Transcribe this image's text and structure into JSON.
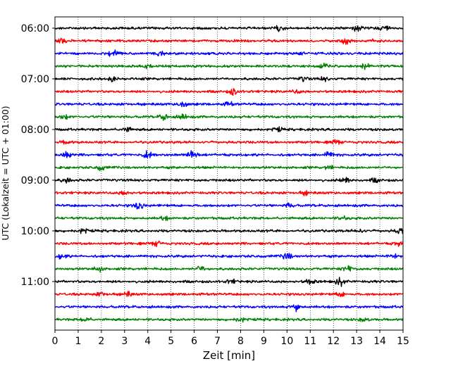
{
  "chart_data": {
    "type": "line",
    "title": "",
    "xlabel": "Zeit  [min]",
    "ylabel": "UTC (Lokalzeit = UTC + 01:00)",
    "xlim": [
      0,
      15
    ],
    "x_ticks": [
      0,
      1,
      2,
      3,
      4,
      5,
      6,
      7,
      8,
      9,
      10,
      11,
      12,
      13,
      14,
      15
    ],
    "y_ticks": [
      "06:00",
      "07:00",
      "08:00",
      "09:00",
      "10:00",
      "11:00"
    ],
    "grid": "vertical-dotted",
    "legend": "none",
    "trace_colors": [
      "#000000",
      "#ff0000",
      "#0000ff",
      "#008000"
    ],
    "traces": [
      {
        "start": "06:00",
        "events": [
          [
            9.7,
            0.8
          ],
          [
            13.0,
            1.0
          ],
          [
            14.2,
            1.0
          ]
        ]
      },
      {
        "start": "06:15",
        "events": [
          [
            0.3,
            0.8
          ],
          [
            12.5,
            1.0
          ],
          [
            13.6,
            0.6
          ]
        ]
      },
      {
        "start": "06:30",
        "events": [
          [
            2.5,
            1.2
          ],
          [
            4.5,
            0.8
          ],
          [
            10.6,
            0.6
          ]
        ]
      },
      {
        "start": "06:45",
        "events": [
          [
            4.0,
            0.6
          ],
          [
            11.6,
            0.6
          ],
          [
            13.4,
            1.0
          ]
        ]
      },
      {
        "start": "07:00",
        "events": [
          [
            2.5,
            0.6
          ],
          [
            10.7,
            0.7
          ],
          [
            11.6,
            0.6
          ]
        ]
      },
      {
        "start": "07:15",
        "events": [
          [
            7.7,
            1.2
          ],
          [
            10.4,
            0.6
          ]
        ]
      },
      {
        "start": "07:30",
        "events": [
          [
            5.5,
            1.0
          ],
          [
            7.5,
            0.6
          ]
        ]
      },
      {
        "start": "07:45",
        "events": [
          [
            0.4,
            0.8
          ],
          [
            4.7,
            1.0
          ],
          [
            5.5,
            1.0
          ]
        ]
      },
      {
        "start": "08:00",
        "events": [
          [
            3.1,
            0.8
          ],
          [
            9.6,
            0.6
          ]
        ]
      },
      {
        "start": "08:15",
        "events": [
          [
            0.5,
            0.6
          ],
          [
            12.1,
            0.6
          ]
        ]
      },
      {
        "start": "08:30",
        "events": [
          [
            0.5,
            1.3
          ],
          [
            4.0,
            1.2
          ],
          [
            5.9,
            2.0
          ],
          [
            11.8,
            1.0
          ]
        ]
      },
      {
        "start": "08:45",
        "events": [
          [
            2.0,
            0.8
          ],
          [
            11.8,
            0.6
          ]
        ]
      },
      {
        "start": "09:00",
        "events": [
          [
            0.5,
            0.8
          ],
          [
            12.5,
            1.0
          ],
          [
            13.8,
            0.6
          ]
        ]
      },
      {
        "start": "09:15",
        "events": [
          [
            3.0,
            0.8
          ],
          [
            10.8,
            0.6
          ]
        ]
      },
      {
        "start": "09:30",
        "events": [
          [
            3.6,
            1.3
          ],
          [
            10.1,
            0.7
          ]
        ]
      },
      {
        "start": "09:45",
        "events": [
          [
            4.7,
            0.6
          ],
          [
            12.4,
            0.6
          ]
        ]
      },
      {
        "start": "10:00",
        "events": [
          [
            1.2,
            0.8
          ],
          [
            13.1,
            0.7
          ],
          [
            14.9,
            1.0
          ]
        ]
      },
      {
        "start": "10:15",
        "events": [
          [
            4.4,
            0.7
          ],
          [
            14.8,
            0.8
          ]
        ]
      },
      {
        "start": "10:30",
        "events": [
          [
            0.3,
            0.8
          ],
          [
            10.0,
            1.2
          ],
          [
            14.6,
            0.8
          ]
        ]
      },
      {
        "start": "10:45",
        "events": [
          [
            1.9,
            0.8
          ],
          [
            6.3,
            1.0
          ],
          [
            12.6,
            1.2
          ]
        ]
      },
      {
        "start": "11:00",
        "events": [
          [
            7.6,
            0.6
          ],
          [
            11.0,
            1.0
          ],
          [
            12.3,
            1.2
          ]
        ]
      },
      {
        "start": "11:15",
        "events": [
          [
            2.0,
            0.7
          ],
          [
            3.1,
            0.8
          ],
          [
            12.3,
            0.8
          ]
        ]
      },
      {
        "start": "11:30",
        "events": [
          [
            10.4,
            1.4
          ]
        ]
      },
      {
        "start": "11:45",
        "events": [
          [
            1.3,
            0.8
          ],
          [
            8.0,
            0.8
          ],
          [
            13.3,
            0.6
          ]
        ]
      }
    ]
  }
}
